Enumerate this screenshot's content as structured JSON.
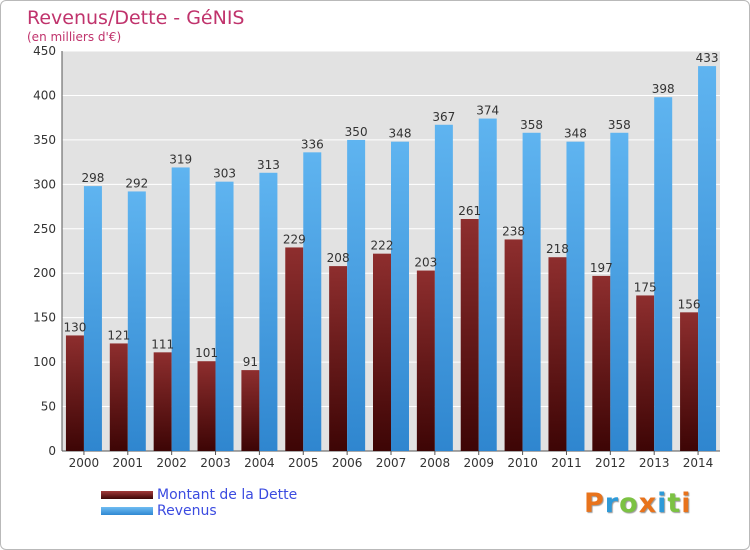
{
  "chart_data": {
    "type": "bar",
    "title": "Revenus/Dette - GéNIS",
    "subtitle": "(en milliers d'€)",
    "categories": [
      "2000",
      "2001",
      "2002",
      "2003",
      "2004",
      "2005",
      "2006",
      "2007",
      "2008",
      "2009",
      "2010",
      "2011",
      "2012",
      "2013",
      "2014"
    ],
    "series": [
      {
        "name": "Montant de la Dette",
        "color": "#7a1a1a",
        "values": [
          130,
          121,
          111,
          101,
          91,
          229,
          208,
          222,
          203,
          261,
          238,
          218,
          197,
          175,
          156
        ]
      },
      {
        "name": "Revenus",
        "color": "#4aa3e8",
        "values": [
          298,
          292,
          319,
          303,
          313,
          336,
          350,
          348,
          367,
          374,
          358,
          348,
          358,
          398,
          433
        ]
      }
    ],
    "ylim": [
      0,
      450
    ],
    "yticks": [
      0,
      50,
      100,
      150,
      200,
      250,
      300,
      350,
      400,
      450
    ],
    "grid": true,
    "legend_position": "bottom-left"
  },
  "logo": {
    "text": "Proxiti",
    "letter_colors": [
      "#e8731c",
      "#2e9ad8",
      "#7cc243",
      "#e8731c",
      "#2e9ad8",
      "#7cc243",
      "#e8731c"
    ]
  }
}
